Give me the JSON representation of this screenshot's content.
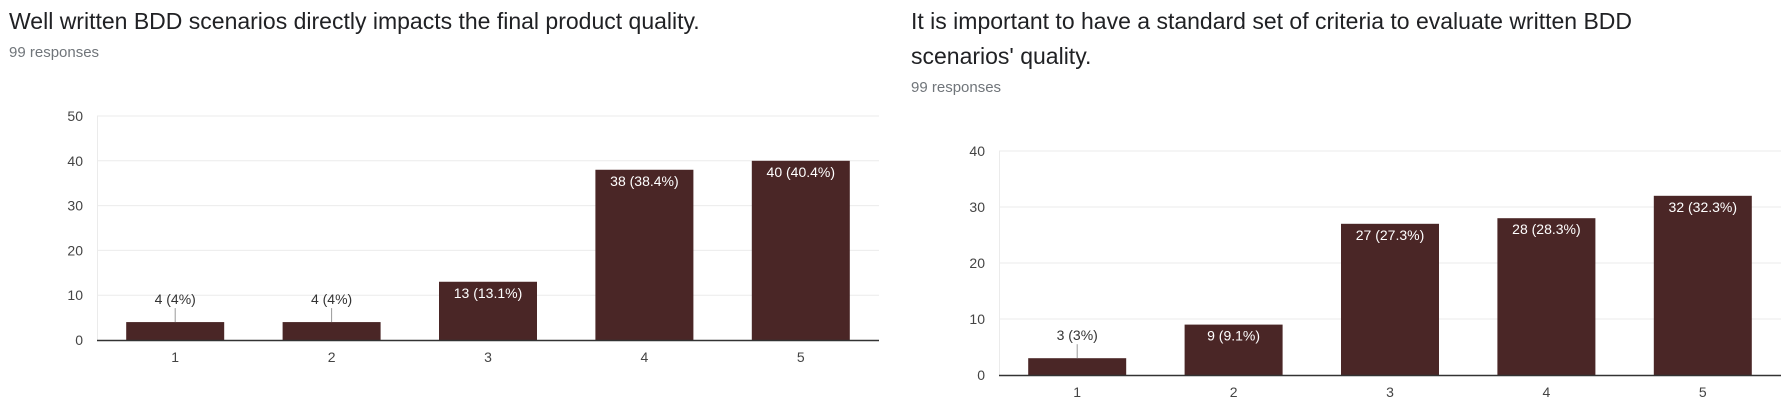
{
  "colors": {
    "bar": "#4a2626",
    "gridline": "#ebebeb",
    "axis": "#333333",
    "label_inside": "#ffffff",
    "label_outside": "#333333"
  },
  "chart_data": [
    {
      "type": "bar",
      "title": "Well written BDD scenarios directly impacts the final product quality.",
      "subtitle": "99 responses",
      "categories": [
        "1",
        "2",
        "3",
        "4",
        "5"
      ],
      "values": [
        4,
        4,
        13,
        38,
        40
      ],
      "data_labels": [
        "4 (4%)",
        "4 (4%)",
        "13 (13.1%)",
        "38 (38.4%)",
        "40 (40.4%)"
      ],
      "yticks": [
        0,
        10,
        20,
        30,
        40,
        50
      ],
      "ylim": [
        0,
        50
      ],
      "grid": true,
      "legend": "none"
    },
    {
      "type": "bar",
      "title": "It is important to have a standard set of criteria to evaluate written BDD scenarios' quality.",
      "subtitle": "99 responses",
      "categories": [
        "1",
        "2",
        "3",
        "4",
        "5"
      ],
      "values": [
        3,
        9,
        27,
        28,
        32
      ],
      "data_labels": [
        "3 (3%)",
        "9 (9.1%)",
        "27 (27.3%)",
        "28 (28.3%)",
        "32 (32.3%)"
      ],
      "yticks": [
        0,
        10,
        20,
        30,
        40
      ],
      "ylim": [
        0,
        40
      ],
      "grid": true,
      "legend": "none"
    }
  ]
}
